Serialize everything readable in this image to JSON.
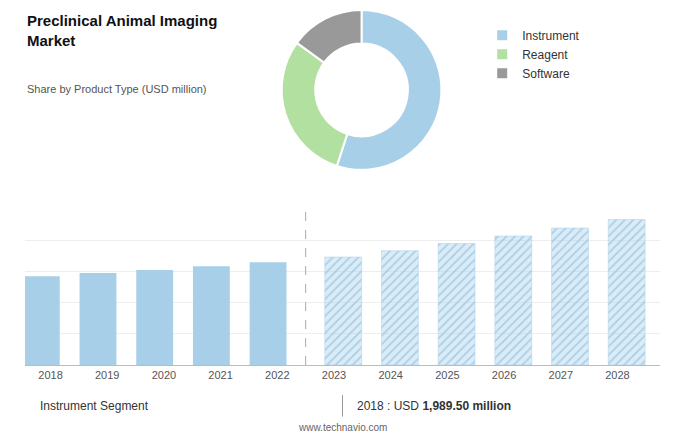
{
  "chart_data": [
    {
      "type": "pie",
      "title": "Preclinical Animal Imaging\nMarket",
      "subtitle": "Share by Product Type (USD million)",
      "categories": [
        "Instrument",
        "Reagent",
        "Software"
      ],
      "values": [
        55,
        30,
        15
      ],
      "colors": [
        "#a8cfe8",
        "#b2e0a0",
        "#999999"
      ],
      "legend": "top right",
      "data_labels": false
    },
    {
      "type": "bar",
      "x": [
        2018,
        2019,
        2020,
        2021,
        2022,
        2023,
        2024,
        2025,
        2026,
        2027,
        2028
      ],
      "series": [
        {
          "color": "#a8cfe8",
          "values": [
            1989.5,
            2060,
            2130,
            2210,
            2300,
            null,
            null,
            null,
            null,
            null,
            null
          ]
        },
        {
          "color": "#a8cfe8",
          "marker": "hatched",
          "values": [
            null,
            null,
            null,
            null,
            null,
            2420,
            2560,
            2720,
            2890,
            3070,
            3260
          ]
        }
      ],
      "xlim": [
        2017.55,
        2028.75
      ],
      "xticks": [
        2018,
        2019,
        2020,
        2021,
        2022,
        2023,
        2024,
        2025,
        2026,
        2027,
        2028
      ],
      "ylim": [
        0,
        3500
      ],
      "yticks": [
        0,
        700,
        1400,
        2100,
        2800,
        3500
      ],
      "grid": true,
      "tick_labels": "x",
      "separator_x": 2022.5,
      "annotations": [
        "Instrument Segment",
        "2018 : USD ",
        "1,989.50 million",
        "www.technavio.com"
      ]
    }
  ]
}
